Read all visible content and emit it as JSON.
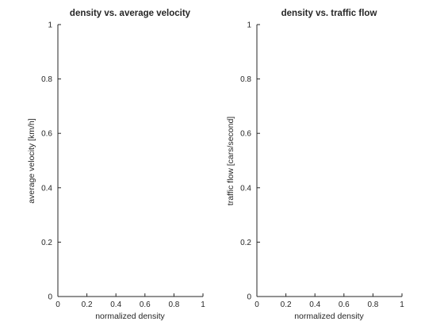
{
  "chart_data": [
    {
      "type": "line",
      "title": "density vs. average velocity",
      "xlabel": "normalized density",
      "ylabel": "average velocity [km/h]",
      "xlim": [
        0,
        1
      ],
      "ylim": [
        0,
        1
      ],
      "x_ticks": [
        0,
        0.2,
        0.4,
        0.6,
        0.8,
        1
      ],
      "x_tick_labels": [
        "0",
        "0.2",
        "0.4",
        "0.6",
        "0.8",
        "1"
      ],
      "y_ticks": [
        0,
        0.2,
        0.4,
        0.6,
        0.8,
        1
      ],
      "y_tick_labels": [
        "0",
        "0.2",
        "0.4",
        "0.6",
        "0.8",
        "1"
      ],
      "grid": false,
      "series": []
    },
    {
      "type": "line",
      "title": "density vs. traffic flow",
      "xlabel": "normalized density",
      "ylabel": "traffic flow [cars/second]",
      "xlim": [
        0,
        1
      ],
      "ylim": [
        0,
        1
      ],
      "x_ticks": [
        0,
        0.2,
        0.4,
        0.6,
        0.8,
        1
      ],
      "x_tick_labels": [
        "0",
        "0.2",
        "0.4",
        "0.6",
        "0.8",
        "1"
      ],
      "y_ticks": [
        0,
        0.2,
        0.4,
        0.6,
        0.8,
        1
      ],
      "y_tick_labels": [
        "0",
        "0.2",
        "0.4",
        "0.6",
        "0.8",
        "1"
      ],
      "grid": false,
      "series": []
    }
  ],
  "colors": {
    "axis": "#262626",
    "background": "#ffffff"
  }
}
